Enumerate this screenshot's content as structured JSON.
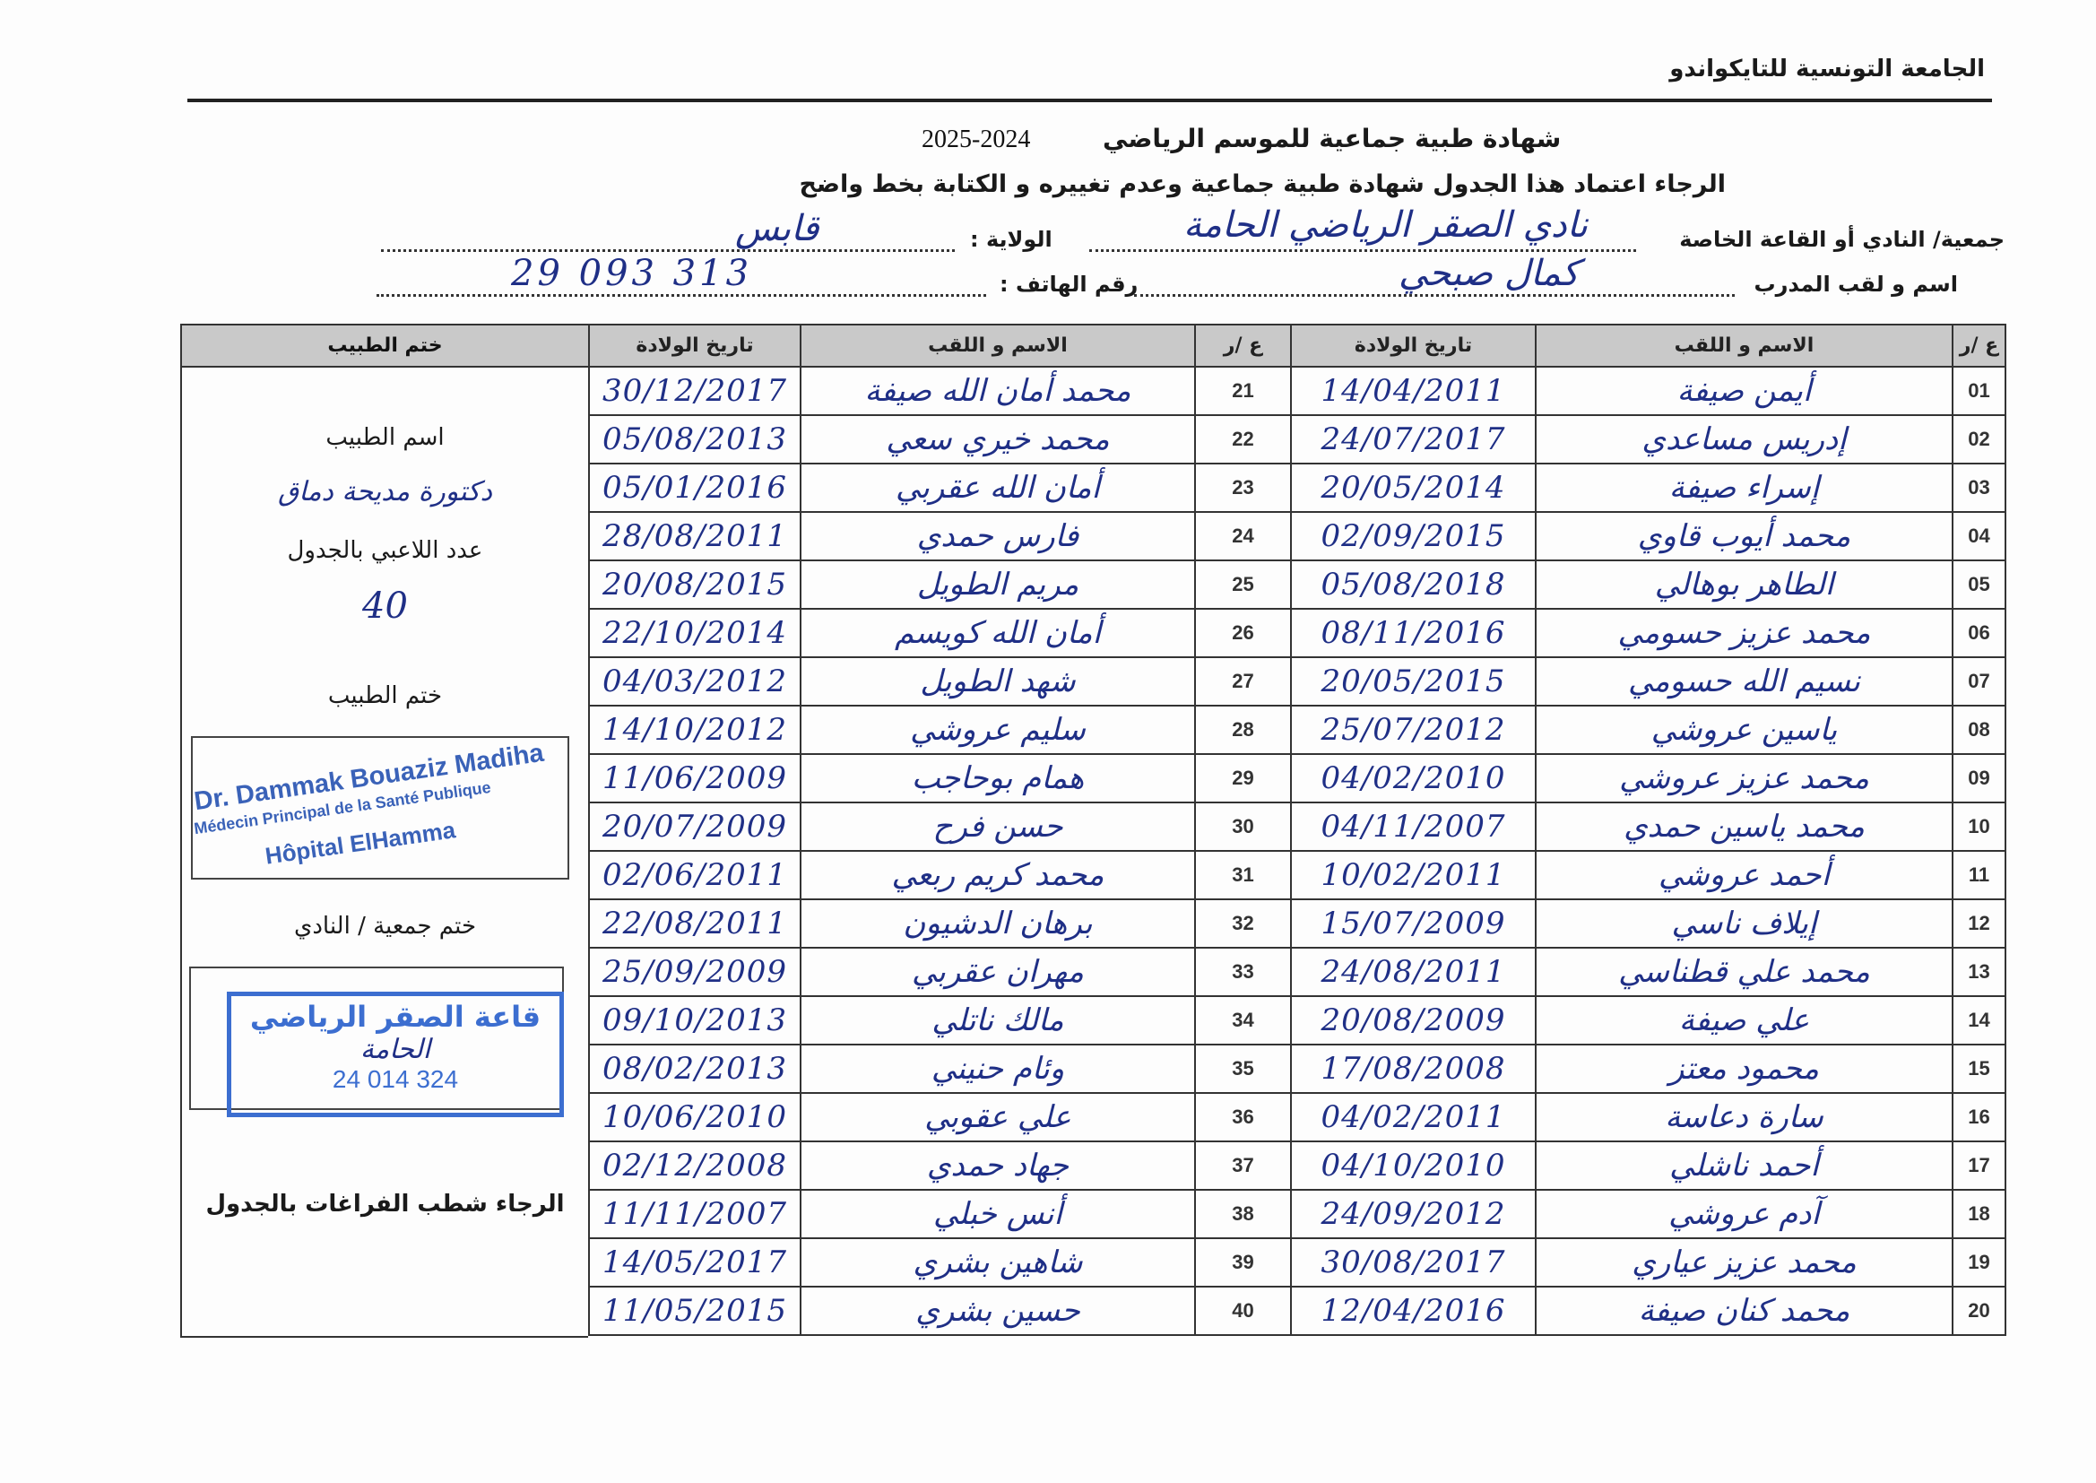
{
  "header": {
    "org_name": "الجامعة التونسية للتايكواندو",
    "title": "شهادة طبية جماعية   للموسم الرياضي",
    "season": "2025-2024",
    "instruction": "الرجاء اعتماد هذا الجدول  شهادة طبية جماعية وعدم تغييره و الكتابة بخط واضح"
  },
  "fields": {
    "club_label": "جمعية/ النادي أو القاعة الخاصة",
    "club_value": "نادي الصقر الرياضي الحامة",
    "state_label": "الولاية :",
    "state_value": "قابس",
    "coach_label": "اسم و لقب المدرب",
    "coach_value": "كمال صبحي",
    "phone_label": "رقم الهاتف :",
    "phone_value": "29 093 313"
  },
  "table": {
    "headers": {
      "num": "ع /ر",
      "name": "الاسم و اللقب",
      "dob": "تاريخ الولادة",
      "doctor_stamp": "ختم الطبيب"
    },
    "rows": [
      {
        "num": "01",
        "name": "أيمن صيفة",
        "dob": "14/04/2011",
        "num2": "21",
        "name2": "محمد أمان الله صيفة",
        "dob2": "30/12/2017"
      },
      {
        "num": "02",
        "name": "إدريس مساعدي",
        "dob": "24/07/2017",
        "num2": "22",
        "name2": "محمد خيري سعي",
        "dob2": "05/08/2013"
      },
      {
        "num": "03",
        "name": "إسراء صيفة",
        "dob": "20/05/2014",
        "num2": "23",
        "name2": "أمان الله عقربي",
        "dob2": "05/01/2016"
      },
      {
        "num": "04",
        "name": "محمد أيوب قاوي",
        "dob": "02/09/2015",
        "num2": "24",
        "name2": "فارس حمدي",
        "dob2": "28/08/2011"
      },
      {
        "num": "05",
        "name": "الطاهر بوهالي",
        "dob": "05/08/2018",
        "num2": "25",
        "name2": "مريم الطويل",
        "dob2": "20/08/2015"
      },
      {
        "num": "06",
        "name": "محمد عزيز حسومي",
        "dob": "08/11/2016",
        "num2": "26",
        "name2": "أمان الله كويسم",
        "dob2": "22/10/2014"
      },
      {
        "num": "07",
        "name": "نسيم الله حسومي",
        "dob": "20/05/2015",
        "num2": "27",
        "name2": "شهد الطويل",
        "dob2": "04/03/2012"
      },
      {
        "num": "08",
        "name": "ياسين عروشي",
        "dob": "25/07/2012",
        "num2": "28",
        "name2": "سليم عروشي",
        "dob2": "14/10/2012"
      },
      {
        "num": "09",
        "name": "محمد عزيز عروشي",
        "dob": "04/02/2010",
        "num2": "29",
        "name2": "همام بوحاجب",
        "dob2": "11/06/2009"
      },
      {
        "num": "10",
        "name": "محمد ياسين حمدي",
        "dob": "04/11/2007",
        "num2": "30",
        "name2": "حسن فرح",
        "dob2": "20/07/2009"
      },
      {
        "num": "11",
        "name": "أحمد عروشي",
        "dob": "10/02/2011",
        "num2": "31",
        "name2": "محمد كريم ربعي",
        "dob2": "02/06/2011"
      },
      {
        "num": "12",
        "name": "إيلاف ناسي",
        "dob": "15/07/2009",
        "num2": "32",
        "name2": "برهان الدشيون",
        "dob2": "22/08/2011"
      },
      {
        "num": "13",
        "name": "محمد علي قطناسي",
        "dob": "24/08/2011",
        "num2": "33",
        "name2": "مهران عقربي",
        "dob2": "25/09/2009"
      },
      {
        "num": "14",
        "name": "علي صيفة",
        "dob": "20/08/2009",
        "num2": "34",
        "name2": "مالك ناتلي",
        "dob2": "09/10/2013"
      },
      {
        "num": "15",
        "name": "محمود معتز",
        "dob": "17/08/2008",
        "num2": "35",
        "name2": "وئام حنيني",
        "dob2": "08/02/2013"
      },
      {
        "num": "16",
        "name": "سارة دعاسة",
        "dob": "04/02/2011",
        "num2": "36",
        "name2": "علي عقوبي",
        "dob2": "10/06/2010"
      },
      {
        "num": "17",
        "name": "أحمد ناشلي",
        "dob": "04/10/2010",
        "num2": "37",
        "name2": "جهاد حمدي",
        "dob2": "02/12/2008"
      },
      {
        "num": "18",
        "name": "آدم عروشي",
        "dob": "24/09/2012",
        "num2": "38",
        "name2": "أنس خبلي",
        "dob2": "11/11/2007"
      },
      {
        "num": "19",
        "name": "محمد عزيز عياري",
        "dob": "30/08/2017",
        "num2": "39",
        "name2": "شاهين بشري",
        "dob2": "14/05/2017"
      },
      {
        "num": "20",
        "name": "محمد كنان صيفة",
        "dob": "12/04/2016",
        "num2": "40",
        "name2": "حسين بشري",
        "dob2": "11/05/2015"
      }
    ]
  },
  "doctor_panel": {
    "doctor_name_label": "اسم الطبيب",
    "doctor_name_value": "دكتورة مديحة دماق",
    "player_count_label": "عدد اللاعبي بالجدول",
    "player_count_value": "40",
    "doctor_stamp_label": "ختم الطبيب",
    "doctor_stamp": {
      "line1": "Dr. Dammak Bouaziz Madiha",
      "line2": "Médecin Principal de la Santé Publique",
      "line3": "Hôpital ElHamma"
    },
    "club_stamp_label": "ختم جمعية / النادي",
    "club_stamp": {
      "line1": "قاعة الصقر الرياضي",
      "line2": "الحامة",
      "line3": "24 014 324"
    },
    "note": "الرجاء شطب الفراغات بالجدول"
  },
  "colors": {
    "ink": "#1f2f86",
    "stamp": "#3c6ed0",
    "header_bg": "#c9c9c9"
  }
}
